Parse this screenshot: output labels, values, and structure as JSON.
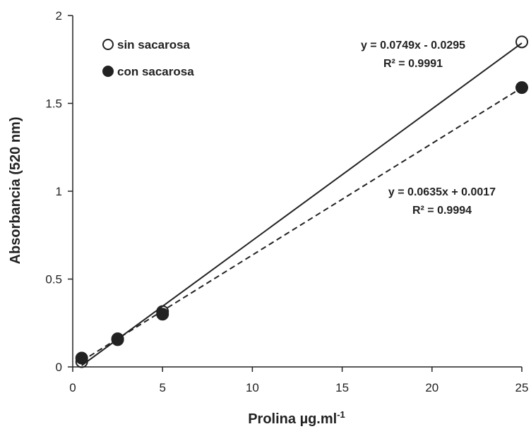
{
  "chart_data": {
    "type": "scatter",
    "xlabel": "Prolina µg.ml",
    "xlabel_sup": "-1",
    "ylabel": "Absorbancia (520 nm)",
    "xlim": [
      0,
      25
    ],
    "ylim": [
      0,
      2
    ],
    "xticks": [
      "0",
      "5",
      "10",
      "15",
      "20",
      "25"
    ],
    "yticks": [
      "0",
      "0.5",
      "1",
      "1.5",
      "2"
    ],
    "grid": false,
    "legend_position": "top-left",
    "series": [
      {
        "name": "sin sacarosa",
        "marker": "open-circle",
        "line": "solid",
        "points": [
          {
            "x": 0.5,
            "y": 0.03
          },
          {
            "x": 2.5,
            "y": 0.155
          },
          {
            "x": 5,
            "y": 0.315
          },
          {
            "x": 25,
            "y": 1.85
          }
        ],
        "fit": {
          "slope": 0.0749,
          "intercept": -0.0295
        },
        "equation": "y = 0.0749x - 0.0295",
        "r2": "R² = 0.9991"
      },
      {
        "name": "con sacarosa",
        "marker": "filled-circle",
        "line": "dashed",
        "points": [
          {
            "x": 0.5,
            "y": 0.05
          },
          {
            "x": 2.5,
            "y": 0.16
          },
          {
            "x": 5,
            "y": 0.3
          },
          {
            "x": 25,
            "y": 1.59
          }
        ],
        "fit": {
          "slope": 0.0635,
          "intercept": 0.0017
        },
        "equation": "y = 0.0635x + 0.0017",
        "r2": "R² = 0.9994"
      }
    ]
  }
}
